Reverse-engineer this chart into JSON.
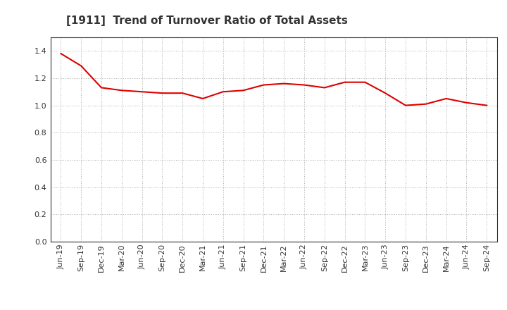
{
  "title": "[1911]  Trend of Turnover Ratio of Total Assets",
  "x_labels": [
    "Jun-19",
    "Sep-19",
    "Dec-19",
    "Mar-20",
    "Jun-20",
    "Sep-20",
    "Dec-20",
    "Mar-21",
    "Jun-21",
    "Sep-21",
    "Dec-21",
    "Mar-22",
    "Jun-22",
    "Sep-22",
    "Dec-22",
    "Mar-23",
    "Jun-23",
    "Sep-23",
    "Dec-23",
    "Mar-24",
    "Jun-24",
    "Sep-24"
  ],
  "y_values": [
    1.38,
    1.29,
    1.13,
    1.11,
    1.1,
    1.09,
    1.09,
    1.05,
    1.1,
    1.11,
    1.15,
    1.16,
    1.15,
    1.13,
    1.17,
    1.17,
    1.09,
    1.0,
    1.01,
    1.05,
    1.02,
    1.0
  ],
  "line_color": "#dd0000",
  "line_width": 1.5,
  "ylim": [
    0.0,
    1.5
  ],
  "yticks": [
    0.0,
    0.2,
    0.4,
    0.6,
    0.8,
    1.0,
    1.2,
    1.4
  ],
  "background_color": "#ffffff",
  "grid_color": "#999999",
  "title_fontsize": 11,
  "tick_fontsize": 8,
  "title_color": "#333333"
}
